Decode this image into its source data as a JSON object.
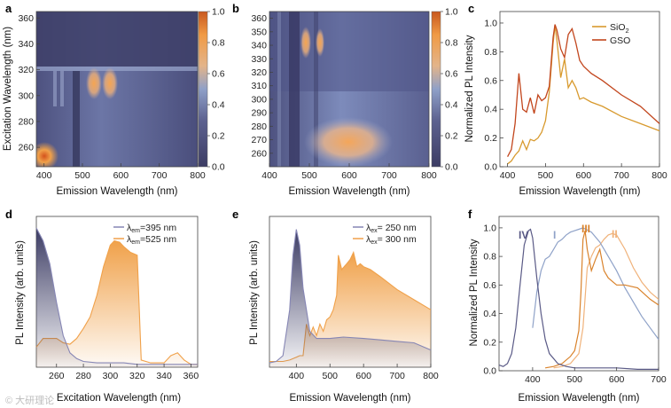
{
  "panels": {
    "a": {
      "label": "a",
      "xlabel": "Emission Wavelength (nm)",
      "ylabel": "Excitation Wavelength (nm)",
      "xticks": [
        "400",
        "500",
        "600",
        "700",
        "800"
      ],
      "yticks": [
        "260",
        "280",
        "300",
        "320",
        "340",
        "360"
      ],
      "cbticks": [
        "0.0",
        "0.2",
        "0.4",
        "0.6",
        "0.8",
        "1.0"
      ]
    },
    "b": {
      "label": "b",
      "xlabel": "Emission Wavelength (nm)",
      "xticks": [
        "400",
        "500",
        "600",
        "700",
        "800"
      ],
      "yticks": [
        "260",
        "270",
        "280",
        "290",
        "300",
        "310",
        "320",
        "330",
        "340",
        "350",
        "360"
      ],
      "cbticks": [
        "0.0",
        "0.2",
        "0.4",
        "0.6",
        "0.8",
        "1.0"
      ]
    },
    "c": {
      "label": "c",
      "xlabel": "Emission Wavelength (nm)",
      "ylabel": "Normalized PL Intensity",
      "xticks": [
        "400",
        "500",
        "600",
        "700",
        "800"
      ],
      "yticks": [
        "0.0",
        "0.2",
        "0.4",
        "0.6",
        "0.8",
        "1.0"
      ],
      "legend": [
        {
          "name": "SiO",
          "sub": "2",
          "color": "#d89a2e"
        },
        {
          "name": "GSO",
          "sub": "",
          "color": "#c2461d"
        }
      ]
    },
    "d": {
      "label": "d",
      "xlabel": "Excitation Wavelength (nm)",
      "ylabel": "PL Intensity (arb. units)",
      "xticks": [
        "260",
        "280",
        "300",
        "320",
        "340",
        "360"
      ],
      "legend": [
        {
          "sym": "λ",
          "sub": "em",
          "text": "=395 nm",
          "color": "#8686b4"
        },
        {
          "sym": "λ",
          "sub": "em",
          "text": "=525 nm",
          "color": "#f0a14a"
        }
      ]
    },
    "e": {
      "label": "e",
      "xlabel": "Emission Wavelength (nm)",
      "ylabel": "PL Intensity (arb. units)",
      "xticks": [
        "400",
        "500",
        "600",
        "700",
        "800"
      ],
      "legend": [
        {
          "sym": "λ",
          "sub": "ex",
          "text": "= 250 nm",
          "color": "#8686b4"
        },
        {
          "sym": "λ",
          "sub": "ex",
          "text": "= 300 nm",
          "color": "#f0a14a"
        }
      ]
    },
    "f": {
      "label": "f",
      "xlabel": "Emission Wavelength (nm)",
      "ylabel": "Normalized PL Intensity",
      "xticks": [
        "400",
        "500",
        "600",
        "700"
      ],
      "yticks": [
        "0.0",
        "0.2",
        "0.4",
        "0.6",
        "0.8",
        "1.0"
      ],
      "curve_labels": [
        {
          "text": "IV",
          "color": "#5a5a86"
        },
        {
          "text": "I",
          "color": "#8fa2c8"
        },
        {
          "text": "III",
          "color": "#d9822b"
        },
        {
          "text": "II",
          "color": "#f0b27a"
        }
      ]
    }
  },
  "watermark": "© 大研理论",
  "colors": {
    "navy": "#3c3c64",
    "slate": "#8686b4",
    "orange": "#f0a14a",
    "sio2": "#d89a2e",
    "gso": "#c2461d"
  },
  "chart_data": [
    {
      "type": "heatmap",
      "panel": "a",
      "title": "",
      "xlabel": "Emission Wavelength (nm)",
      "ylabel": "Excitation Wavelength (nm)",
      "xlim": [
        380,
        800
      ],
      "ylim": [
        245,
        365
      ],
      "zlim": [
        0,
        1
      ],
      "hotspots": [
        {
          "x": 395,
          "y": 252,
          "z": 1.0
        },
        {
          "x": 530,
          "y": 310,
          "z": 0.72
        },
        {
          "x": 570,
          "y": 310,
          "z": 0.72
        }
      ]
    },
    {
      "type": "heatmap",
      "panel": "b",
      "title": "",
      "xlabel": "Emission Wavelength (nm)",
      "ylabel": "",
      "xlim": [
        400,
        800
      ],
      "ylim": [
        250,
        365
      ],
      "zlim": [
        0,
        1
      ],
      "hotspots": [
        {
          "x": 490,
          "y": 343,
          "z": 0.85
        },
        {
          "x": 525,
          "y": 343,
          "z": 0.75
        },
        {
          "x": 600,
          "y": 268,
          "z": 0.65
        }
      ]
    },
    {
      "type": "line",
      "panel": "c",
      "xlabel": "Emission Wavelength (nm)",
      "ylabel": "Normalized PL Intensity",
      "xlim": [
        380,
        800
      ],
      "ylim": [
        0,
        1.08
      ],
      "series": [
        {
          "name": "SiO2",
          "x": [
            400,
            410,
            420,
            430,
            440,
            450,
            460,
            470,
            480,
            490,
            500,
            510,
            520,
            525,
            530,
            540,
            550,
            560,
            570,
            580,
            590,
            600,
            620,
            650,
            700,
            750,
            800
          ],
          "y": [
            0.02,
            0.04,
            0.08,
            0.11,
            0.18,
            0.12,
            0.19,
            0.18,
            0.2,
            0.24,
            0.32,
            0.52,
            0.86,
            0.98,
            0.88,
            0.62,
            0.75,
            0.55,
            0.6,
            0.55,
            0.47,
            0.48,
            0.45,
            0.42,
            0.35,
            0.3,
            0.25
          ]
        },
        {
          "name": "GSO",
          "x": [
            400,
            410,
            420,
            430,
            440,
            450,
            460,
            470,
            480,
            490,
            500,
            510,
            520,
            525,
            530,
            540,
            550,
            560,
            570,
            580,
            590,
            600,
            620,
            650,
            700,
            750,
            800
          ],
          "y": [
            0.07,
            0.12,
            0.3,
            0.65,
            0.4,
            0.38,
            0.48,
            0.37,
            0.5,
            0.46,
            0.48,
            0.56,
            0.9,
            0.99,
            0.95,
            0.82,
            0.76,
            0.92,
            0.96,
            0.86,
            0.74,
            0.7,
            0.65,
            0.6,
            0.5,
            0.42,
            0.3
          ]
        }
      ]
    },
    {
      "type": "area",
      "panel": "d",
      "xlabel": "Excitation Wavelength (nm)",
      "ylabel": "PL Intensity (arb. units)",
      "xlim": [
        245,
        365
      ],
      "ylim": [
        0,
        1.05
      ],
      "series": [
        {
          "name": "λem=395 nm",
          "x": [
            245,
            250,
            255,
            260,
            265,
            270,
            275,
            280,
            290,
            300,
            310,
            320,
            330,
            340,
            350,
            360,
            365
          ],
          "y": [
            0.97,
            0.88,
            0.72,
            0.45,
            0.22,
            0.1,
            0.06,
            0.04,
            0.03,
            0.03,
            0.03,
            0.02,
            0.02,
            0.02,
            0.02,
            0.02,
            0.02
          ]
        },
        {
          "name": "λem=525 nm",
          "x": [
            245,
            250,
            260,
            265,
            270,
            275,
            280,
            285,
            290,
            295,
            300,
            303,
            307,
            310,
            315,
            320,
            323,
            330,
            340,
            345,
            350,
            355,
            360,
            365
          ],
          "y": [
            0.14,
            0.2,
            0.2,
            0.17,
            0.16,
            0.2,
            0.27,
            0.35,
            0.5,
            0.7,
            0.85,
            0.88,
            0.87,
            0.84,
            0.8,
            0.78,
            0.05,
            0.03,
            0.03,
            0.08,
            0.1,
            0.05,
            0.02,
            0.02
          ]
        }
      ]
    },
    {
      "type": "area",
      "panel": "e",
      "xlabel": "Emission Wavelength (nm)",
      "ylabel": "PL Intensity (arb. units)",
      "xlim": [
        320,
        800
      ],
      "ylim": [
        0,
        1.05
      ],
      "series": [
        {
          "name": "λex=250 nm",
          "x": [
            320,
            340,
            360,
            380,
            390,
            400,
            410,
            420,
            440,
            460,
            480,
            500,
            540,
            600,
            650,
            700,
            750,
            800
          ],
          "y": [
            0.03,
            0.04,
            0.08,
            0.4,
            0.78,
            0.96,
            0.85,
            0.55,
            0.25,
            0.2,
            0.2,
            0.2,
            0.21,
            0.2,
            0.19,
            0.18,
            0.17,
            0.12
          ]
        },
        {
          "name": "λex=300 nm",
          "x": [
            320,
            360,
            380,
            400,
            410,
            420,
            430,
            440,
            450,
            460,
            470,
            480,
            490,
            500,
            510,
            520,
            525,
            535,
            550,
            560,
            570,
            580,
            590,
            600,
            620,
            650,
            700,
            750,
            800
          ],
          "y": [
            0.04,
            0.04,
            0.05,
            0.07,
            0.08,
            0.08,
            0.3,
            0.22,
            0.28,
            0.22,
            0.3,
            0.25,
            0.33,
            0.35,
            0.4,
            0.5,
            0.78,
            0.68,
            0.72,
            0.75,
            0.8,
            0.7,
            0.72,
            0.7,
            0.68,
            0.63,
            0.54,
            0.47,
            0.4
          ]
        }
      ]
    },
    {
      "type": "line",
      "panel": "f",
      "xlabel": "Emission Wavelength (nm)",
      "ylabel": "Normalized PL Intensity",
      "xlim": [
        320,
        700
      ],
      "ylim": [
        0,
        1.08
      ],
      "series": [
        {
          "name": "IV",
          "x": [
            320,
            330,
            340,
            350,
            360,
            370,
            380,
            390,
            395,
            400,
            410,
            420,
            430,
            440,
            460,
            480,
            500,
            550,
            600,
            650,
            700
          ],
          "y": [
            0.04,
            0.03,
            0.05,
            0.12,
            0.3,
            0.6,
            0.88,
            0.98,
            0.99,
            0.93,
            0.65,
            0.4,
            0.22,
            0.12,
            0.05,
            0.03,
            0.02,
            0.02,
            0.02,
            0.01,
            0.01
          ]
        },
        {
          "name": "I",
          "x": [
            400,
            410,
            420,
            430,
            440,
            450,
            460,
            470,
            480,
            490,
            500,
            510,
            520,
            540,
            560,
            580,
            600,
            620,
            640,
            660,
            680,
            700
          ],
          "y": [
            0.3,
            0.55,
            0.7,
            0.78,
            0.8,
            0.85,
            0.9,
            0.92,
            0.95,
            0.97,
            0.98,
            0.99,
            1.0,
            0.97,
            0.9,
            0.8,
            0.7,
            0.58,
            0.48,
            0.38,
            0.3,
            0.22
          ]
        },
        {
          "name": "III",
          "x": [
            430,
            450,
            470,
            490,
            500,
            510,
            515,
            520,
            525,
            530,
            540,
            550,
            560,
            570,
            580,
            600,
            620,
            650,
            680,
            700
          ],
          "y": [
            0.02,
            0.03,
            0.05,
            0.1,
            0.14,
            0.28,
            0.55,
            0.92,
            0.98,
            0.85,
            0.7,
            0.78,
            0.85,
            0.7,
            0.65,
            0.6,
            0.6,
            0.58,
            0.5,
            0.46
          ]
        },
        {
          "name": "II",
          "x": [
            450,
            470,
            490,
            510,
            520,
            530,
            540,
            550,
            560,
            570,
            580,
            590,
            600,
            620,
            640,
            660,
            680,
            700
          ],
          "y": [
            0.02,
            0.03,
            0.05,
            0.12,
            0.3,
            0.72,
            0.8,
            0.86,
            0.88,
            0.92,
            0.95,
            0.96,
            0.95,
            0.85,
            0.72,
            0.62,
            0.55,
            0.5
          ]
        }
      ]
    }
  ]
}
